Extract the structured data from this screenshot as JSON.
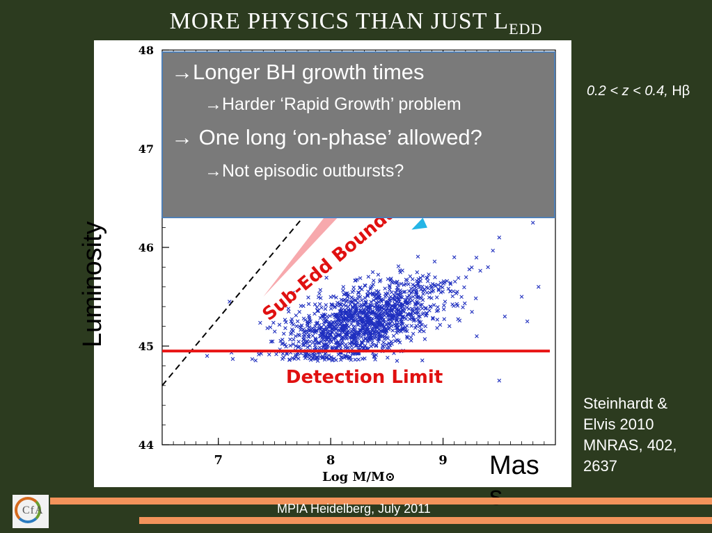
{
  "slide": {
    "title_main": "MORE PHYSICS THAN JUST L",
    "title_sub": "EDD",
    "callout": {
      "bullet1": "→Longer BH growth times",
      "bullet2": "→Harder ‘Rapid Growth’ problem",
      "bullet3": "→ One long ‘on-phase’ allowed?",
      "bullet4": "→Not episodic outbursts?"
    },
    "luminosity_label": "Luminosity",
    "mass_label_line1": "Mas",
    "mass_label_line2": "s",
    "redshift_label": "0.2 < z < 0.4,",
    "redshift_suffix": "Hβ",
    "reference": {
      "line1": "Steinhardt &",
      "line2": "Elvis 2010",
      "line3": "MNRAS, 402,",
      "line4": "2637"
    },
    "footer": "MPIA Heidelberg, July 2011",
    "logo_text": "CfA",
    "colors": {
      "background": "#2c3b1f",
      "accent_bar": "#f3935b",
      "points": "#1f2fbf",
      "detection_line": "#e81515",
      "annotation_red": "#e01010",
      "wedge_pink": "#f7a9ad",
      "wedge_cyan": "#25b5e6",
      "callout_bg": "#7a7a7a"
    }
  },
  "chart_data": {
    "type": "scatter",
    "xlabel": "Log M/M⊙",
    "ylabel": "",
    "xlim": [
      6.5,
      10.0
    ],
    "ylim": [
      44,
      48
    ],
    "xticks": [
      "7",
      "8",
      "9"
    ],
    "yticks": [
      "44",
      "45",
      "46",
      "47",
      "48"
    ],
    "detection_limit": {
      "y": 44.95,
      "label": "Detection Limit"
    },
    "eddington_line": {
      "x": [
        6.5,
        9.0
      ],
      "y": [
        44.6,
        48.0
      ],
      "style": "dashed"
    },
    "sub_eddington_label": "Sub-Edd Boundar",
    "sample_cluster": {
      "center_x": 8.3,
      "center_y": 45.25,
      "spread_x": 0.35,
      "spread_y": 0.18,
      "count": 1400,
      "outliers": [
        {
          "x": 9.8,
          "y": 46.25
        },
        {
          "x": 9.5,
          "y": 46.1
        },
        {
          "x": 9.4,
          "y": 45.8
        },
        {
          "x": 9.7,
          "y": 45.5
        },
        {
          "x": 9.1,
          "y": 45.9
        },
        {
          "x": 9.55,
          "y": 45.3
        },
        {
          "x": 7.1,
          "y": 45.45
        },
        {
          "x": 6.9,
          "y": 44.9
        },
        {
          "x": 9.5,
          "y": 44.65
        },
        {
          "x": 9.75,
          "y": 45.25
        },
        {
          "x": 9.3,
          "y": 45.1
        },
        {
          "x": 9.85,
          "y": 45.6
        }
      ]
    }
  }
}
